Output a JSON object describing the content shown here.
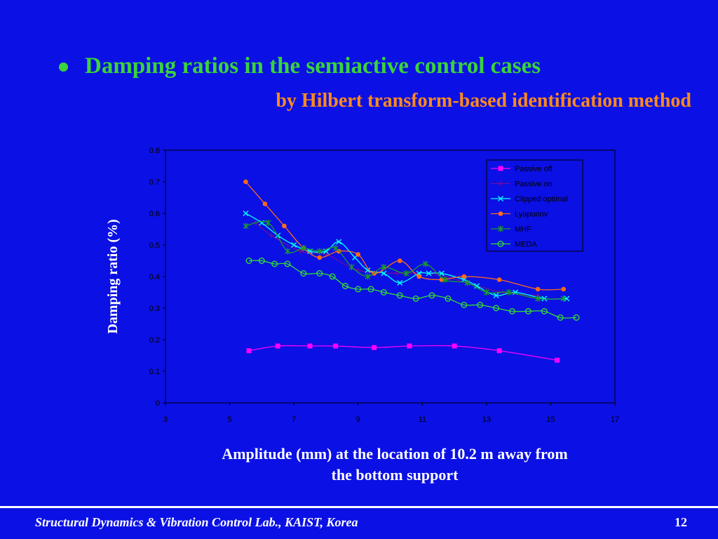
{
  "slide": {
    "title": "Damping ratios in the semiactive control cases",
    "subtitle": "by Hilbert transform-based identification method",
    "x_caption_line1": "Amplitude (mm) at the location of 10.2 m away from",
    "x_caption_line2": "the bottom support",
    "footer": "Structural Dynamics & Vibration Control Lab., KAIST, Korea",
    "page_number": "12",
    "colors": {
      "background": "#0b10e4",
      "title": "#39d43a",
      "subtitle": "#ff8a1c",
      "text": "#ffffff"
    }
  },
  "chart_data": {
    "type": "line",
    "title": "",
    "xlabel": "",
    "ylabel": "Damping ratio (%)",
    "xlim": [
      3,
      17
    ],
    "ylim": [
      0,
      0.8
    ],
    "xticks": [
      "3",
      "5",
      "7",
      "9",
      "11",
      "13",
      "15",
      "17"
    ],
    "yticks": [
      "0",
      "0.1",
      "0.2",
      "0.3",
      "0.4",
      "0.5",
      "0.6",
      "0.7",
      "0.8"
    ],
    "grid": false,
    "legend_position": "top-right",
    "series": [
      {
        "name": "Passive off",
        "color": "#ff00ff",
        "marker": "square",
        "x": [
          5.6,
          6.5,
          7.5,
          8.3,
          9.5,
          10.6,
          12.0,
          13.4,
          15.2
        ],
        "y": [
          0.165,
          0.18,
          0.18,
          0.18,
          0.175,
          0.18,
          0.18,
          0.165,
          0.135
        ]
      },
      {
        "name": "Passive on",
        "color": "#6a0ea0",
        "marker": "plus",
        "x": [
          5.8,
          6.3,
          7.2,
          8.0,
          9.0,
          10.2,
          11.3,
          12.4,
          13.5,
          14.6
        ],
        "y": [
          0.57,
          0.53,
          0.48,
          0.47,
          0.42,
          0.41,
          0.41,
          0.38,
          0.35,
          0.34
        ]
      },
      {
        "name": "Clipped optimal",
        "color": "#00ffff",
        "marker": "x",
        "x": [
          5.5,
          6.0,
          6.5,
          7.0,
          7.5,
          8.0,
          8.4,
          8.9,
          9.3,
          9.8,
          10.3,
          10.9,
          11.2,
          11.6,
          12.3,
          12.7,
          13.3,
          13.9,
          14.8,
          15.5
        ],
        "y": [
          0.6,
          0.57,
          0.53,
          0.5,
          0.48,
          0.48,
          0.51,
          0.46,
          0.42,
          0.41,
          0.38,
          0.41,
          0.41,
          0.41,
          0.39,
          0.37,
          0.34,
          0.35,
          0.33,
          0.33
        ]
      },
      {
        "name": "Lyapunov",
        "color": "#ff6a1a",
        "marker": "circle-filled",
        "x": [
          5.5,
          6.1,
          6.7,
          7.3,
          7.8,
          8.4,
          9.0,
          9.5,
          10.3,
          10.9,
          11.6,
          12.3,
          13.4,
          14.6,
          15.4
        ],
        "y": [
          0.7,
          0.63,
          0.56,
          0.49,
          0.46,
          0.48,
          0.47,
          0.41,
          0.45,
          0.4,
          0.39,
          0.4,
          0.39,
          0.36,
          0.36
        ]
      },
      {
        "name": "MHF",
        "color": "#1a9a2a",
        "marker": "asterisk",
        "x": [
          5.5,
          6.2,
          6.8,
          7.3,
          7.8,
          8.3,
          8.8,
          9.3,
          9.8,
          10.5,
          11.1,
          11.7,
          12.4,
          13.0,
          13.7,
          14.6,
          15.4
        ],
        "y": [
          0.56,
          0.57,
          0.48,
          0.49,
          0.48,
          0.49,
          0.43,
          0.4,
          0.43,
          0.41,
          0.44,
          0.39,
          0.38,
          0.35,
          0.35,
          0.33,
          0.33
        ]
      },
      {
        "name": "MEDA",
        "color": "#33dd33",
        "marker": "circle-open",
        "x": [
          5.6,
          6.0,
          6.4,
          6.8,
          7.3,
          7.8,
          8.2,
          8.6,
          9.0,
          9.4,
          9.8,
          10.3,
          10.8,
          11.3,
          11.8,
          12.3,
          12.8,
          13.3,
          13.8,
          14.3,
          14.8,
          15.3,
          15.8
        ],
        "y": [
          0.45,
          0.45,
          0.44,
          0.44,
          0.41,
          0.41,
          0.4,
          0.37,
          0.36,
          0.36,
          0.35,
          0.34,
          0.33,
          0.34,
          0.33,
          0.31,
          0.31,
          0.3,
          0.29,
          0.29,
          0.29,
          0.27,
          0.27
        ]
      }
    ]
  }
}
